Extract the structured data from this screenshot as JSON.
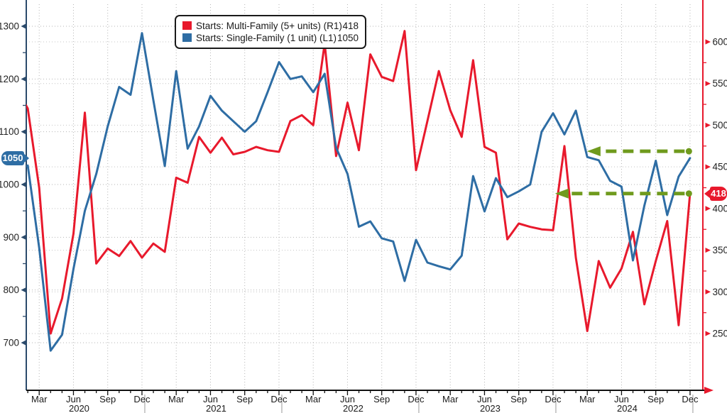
{
  "legend": {
    "items": [
      {
        "label": "Starts: Multi-Family (5+ units) (R1)",
        "value": "418",
        "color": "#e8192c"
      },
      {
        "label": "Starts: Single-Family (1 unit) (L1)",
        "value": "1050",
        "color": "#2e6da4"
      }
    ]
  },
  "left_axis_tag": "1050",
  "right_axis_tag": "418",
  "chart_data": {
    "type": "line",
    "title": "",
    "x_start": "2020-01",
    "x_end": "2024-12",
    "x_quarter_labels": [
      "Mar",
      "Jun",
      "Sep",
      "Dec"
    ],
    "x_year_labels": [
      "2020",
      "2021",
      "2022",
      "2023",
      "2024"
    ],
    "left_axis": {
      "ticks": [
        700,
        800,
        900,
        1000,
        1100,
        1200,
        1300
      ],
      "minor_ticks": [
        750,
        850,
        950,
        1050,
        1150,
        1250
      ],
      "color": "#2b4a6b",
      "label_color": "#222222"
    },
    "right_axis": {
      "ticks": [
        250,
        300,
        350,
        400,
        450,
        500,
        550,
        600
      ],
      "minor_ticks": [
        275,
        325,
        375,
        425,
        475,
        525,
        575
      ],
      "color": "#e8192c",
      "label_color": "#222222"
    },
    "grid": true,
    "series": [
      {
        "name": "Starts: Multi-Family (5+ units)",
        "axis": "right",
        "color": "#e8192c",
        "last_value": 418,
        "values": [
          545,
          520,
          425,
          250,
          292,
          370,
          515,
          334,
          352,
          343,
          361,
          341,
          358,
          348,
          437,
          431,
          486,
          467,
          485,
          465,
          468,
          474,
          470,
          468,
          505,
          512,
          500,
          598,
          463,
          527,
          470,
          585,
          558,
          553,
          613,
          446,
          505,
          565,
          518,
          486,
          578,
          474,
          467,
          363,
          382,
          378,
          375,
          374,
          475,
          341,
          253,
          337,
          305,
          328,
          372,
          285,
          337,
          385,
          260,
          418
        ]
      },
      {
        "name": "Starts: Single-Family (1 unit)",
        "axis": "left",
        "color": "#2e6da4",
        "last_value": 1050,
        "values": [
          1025,
          1036,
          880,
          685,
          715,
          840,
          950,
          1020,
          1110,
          1185,
          1170,
          1287,
          1160,
          1035,
          1215,
          1068,
          1110,
          1168,
          1140,
          1120,
          1100,
          1120,
          1175,
          1232,
          1200,
          1205,
          1175,
          1210,
          1070,
          1020,
          920,
          930,
          898,
          892,
          817,
          895,
          852,
          845,
          839,
          865,
          1016,
          949,
          1012,
          976,
          987,
          1000,
          1100,
          1135,
          1095,
          1140,
          1052,
          1046,
          1007,
          996,
          856,
          960,
          1045,
          942,
          1015,
          1050
        ]
      }
    ],
    "annotations": [
      {
        "name": "single-family-level-arrow",
        "axis": "left",
        "value": 1063,
        "from_month": 58.9,
        "to_month": 50.6,
        "color": "#6f9a1d"
      },
      {
        "name": "multi-family-level-arrow",
        "axis": "right",
        "value": 418,
        "from_month": 58.9,
        "to_month": 47.8,
        "color": "#6f9a1d"
      }
    ]
  }
}
